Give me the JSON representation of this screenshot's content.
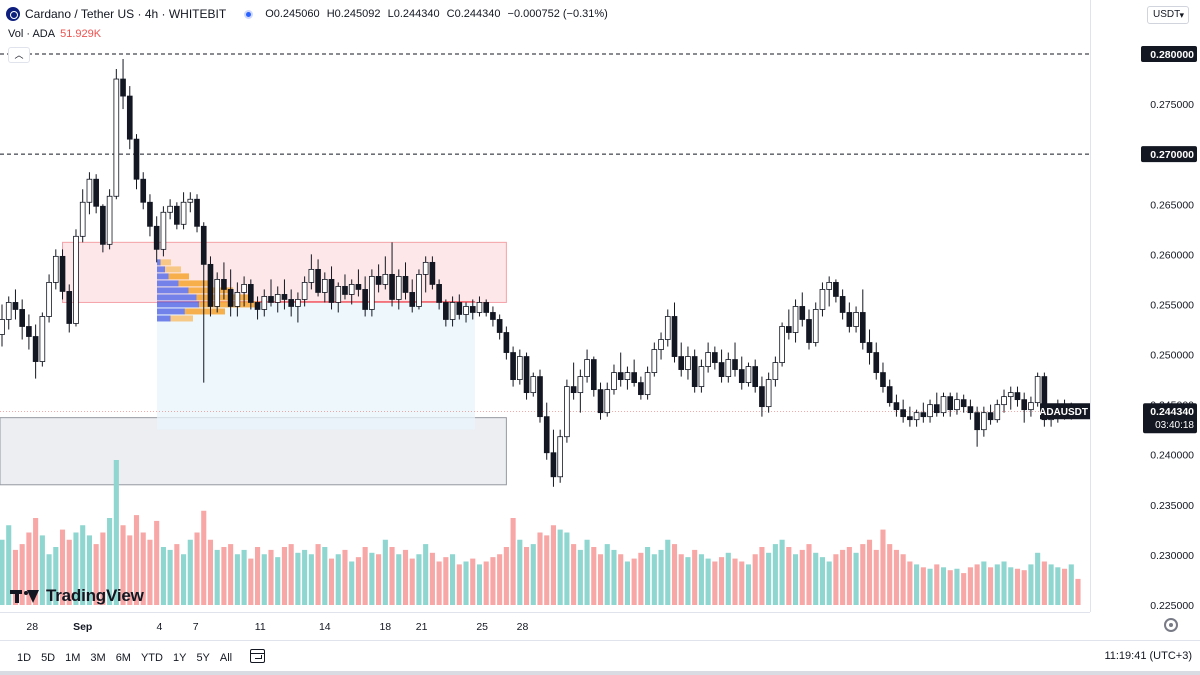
{
  "header": {
    "symbol_title": "Cardano / Tether US · 4h · WHITEBIT",
    "ohlc": {
      "open": "O0.245060",
      "high": "H0.245092",
      "low": "L0.244340",
      "close": "C0.244340",
      "change": "−0.000752 (−0.31%)"
    },
    "volume_label": "Vol · ADA",
    "volume_value": "51.929K",
    "collapse_icon": "chevron-up-icon"
  },
  "price_axis": {
    "currency": "USDT",
    "ticks": [
      "0.280000",
      "0.275000",
      "0.270000",
      "0.265000",
      "0.260000",
      "0.255000",
      "0.250000",
      "0.245000",
      "0.240000",
      "0.235000",
      "0.230000",
      "0.225000"
    ],
    "highlighted_levels": [
      "0.280000",
      "0.270000"
    ],
    "symbol_tag": "ADAUSDT",
    "last_price": "0.244340",
    "countdown": "03:40:18"
  },
  "time_axis": {
    "ticks": [
      "28",
      "Sep",
      "4",
      "7",
      "11",
      "14",
      "18",
      "21",
      "25",
      "28"
    ]
  },
  "bottom_bar": {
    "ranges": [
      "1D",
      "5D",
      "1M",
      "3M",
      "6M",
      "YTD",
      "1Y",
      "5Y",
      "All"
    ],
    "clock": "11:19:41 (UTC+3)"
  },
  "watermark": {
    "text": "TradingView"
  },
  "colors": {
    "up": "#26a69a",
    "down": "#ef5350",
    "vol_up": "#8ed6cf",
    "vol_down": "#f7a7a6",
    "resistance_zone": "#fde7e9",
    "resistance_border": "#f3a2a8",
    "support_zone": "#eceef2",
    "support_border": "#9598a1",
    "level_line": "#131722"
  },
  "chart_data": {
    "type": "candlestick",
    "title": "Cardano / Tether US · 4h · WHITEBIT",
    "ylabel": "USDT",
    "ylim": [
      0.2225,
      0.2812
    ],
    "horizontal_levels": [
      0.28,
      0.27
    ],
    "zones": [
      {
        "kind": "resistance",
        "from_x": 25.5,
        "to_x": 36.5,
        "low": 0.2552,
        "high": 0.2612
      },
      {
        "kind": "support",
        "from_x": 24.7,
        "to_x": 36.5,
        "low": 0.237,
        "high": 0.2437
      }
    ],
    "last_price": 0.24434,
    "x_tick_positions": {
      "28": 24.75,
      "Sep": 26.0,
      "4": 27.9,
      "7": 28.8,
      "11": 30.4,
      "14": 32.0,
      "18": 33.5,
      "21": 34.4,
      "25": 35.9,
      "28_end": 36.9
    },
    "candles": [
      [
        0.252,
        0.255,
        0.2508,
        0.2535
      ],
      [
        0.2535,
        0.2558,
        0.2525,
        0.2552
      ],
      [
        0.2552,
        0.2565,
        0.2535,
        0.2545
      ],
      [
        0.2545,
        0.2555,
        0.2515,
        0.2528
      ],
      [
        0.2528,
        0.254,
        0.2505,
        0.2518
      ],
      [
        0.2518,
        0.253,
        0.2476,
        0.2493
      ],
      [
        0.2493,
        0.2542,
        0.2488,
        0.2538
      ],
      [
        0.2538,
        0.258,
        0.2532,
        0.2572
      ],
      [
        0.2572,
        0.2605,
        0.2565,
        0.2598
      ],
      [
        0.2598,
        0.2605,
        0.2555,
        0.2563
      ],
      [
        0.2563,
        0.257,
        0.2522,
        0.2531
      ],
      [
        0.2531,
        0.2625,
        0.2528,
        0.2618
      ],
      [
        0.2618,
        0.2665,
        0.2612,
        0.2652
      ],
      [
        0.2652,
        0.2682,
        0.264,
        0.2675
      ],
      [
        0.2675,
        0.268,
        0.2641,
        0.2648
      ],
      [
        0.2648,
        0.265,
        0.2602,
        0.261
      ],
      [
        0.261,
        0.2665,
        0.2605,
        0.2658
      ],
      [
        0.2658,
        0.2785,
        0.2655,
        0.2775
      ],
      [
        0.2775,
        0.2795,
        0.2745,
        0.2758
      ],
      [
        0.2758,
        0.2768,
        0.2705,
        0.2715
      ],
      [
        0.2715,
        0.272,
        0.2665,
        0.2675
      ],
      [
        0.2675,
        0.2682,
        0.2645,
        0.2652
      ],
      [
        0.2652,
        0.266,
        0.2618,
        0.2628
      ],
      [
        0.2628,
        0.2638,
        0.2592,
        0.2605
      ],
      [
        0.2605,
        0.2648,
        0.2598,
        0.2642
      ],
      [
        0.2642,
        0.2655,
        0.2635,
        0.2648
      ],
      [
        0.2648,
        0.2652,
        0.2625,
        0.263
      ],
      [
        0.263,
        0.2662,
        0.2625,
        0.2652
      ],
      [
        0.2652,
        0.2662,
        0.2642,
        0.2655
      ],
      [
        0.2655,
        0.266,
        0.2622,
        0.2628
      ],
      [
        0.2628,
        0.2632,
        0.2472,
        0.259
      ],
      [
        0.259,
        0.2598,
        0.2538,
        0.2548
      ],
      [
        0.2548,
        0.2582,
        0.2542,
        0.2575
      ],
      [
        0.2575,
        0.2592,
        0.2555,
        0.2565
      ],
      [
        0.2565,
        0.2585,
        0.2538,
        0.2548
      ],
      [
        0.2548,
        0.2572,
        0.2538,
        0.2562
      ],
      [
        0.2562,
        0.2578,
        0.2548,
        0.257
      ],
      [
        0.257,
        0.2575,
        0.2545,
        0.2552
      ],
      [
        0.2552,
        0.2558,
        0.2535,
        0.2545
      ],
      [
        0.2545,
        0.2565,
        0.2538,
        0.2558
      ],
      [
        0.2558,
        0.2575,
        0.2548,
        0.2552
      ],
      [
        0.2552,
        0.2568,
        0.2542,
        0.256
      ],
      [
        0.256,
        0.2575,
        0.2545,
        0.2555
      ],
      [
        0.2555,
        0.2565,
        0.2538,
        0.2548
      ],
      [
        0.2548,
        0.2562,
        0.2532,
        0.2555
      ],
      [
        0.2555,
        0.2578,
        0.2548,
        0.2572
      ],
      [
        0.2572,
        0.26,
        0.2565,
        0.2585
      ],
      [
        0.2585,
        0.2595,
        0.2558,
        0.2562
      ],
      [
        0.2562,
        0.2582,
        0.2552,
        0.2575
      ],
      [
        0.2575,
        0.2588,
        0.2545,
        0.2552
      ],
      [
        0.2552,
        0.2572,
        0.2542,
        0.2568
      ],
      [
        0.2568,
        0.258,
        0.2555,
        0.256
      ],
      [
        0.256,
        0.2575,
        0.255,
        0.257
      ],
      [
        0.257,
        0.2585,
        0.2558,
        0.2565
      ],
      [
        0.2565,
        0.2578,
        0.2538,
        0.2545
      ],
      [
        0.2545,
        0.2585,
        0.2538,
        0.2578
      ],
      [
        0.2578,
        0.259,
        0.2562,
        0.257
      ],
      [
        0.257,
        0.2598,
        0.2565,
        0.258
      ],
      [
        0.258,
        0.2612,
        0.2548,
        0.2555
      ],
      [
        0.2555,
        0.2585,
        0.2545,
        0.2578
      ],
      [
        0.2578,
        0.2592,
        0.2555,
        0.2562
      ],
      [
        0.2562,
        0.2575,
        0.2542,
        0.2548
      ],
      [
        0.2548,
        0.2585,
        0.2545,
        0.258
      ],
      [
        0.258,
        0.2598,
        0.2562,
        0.2592
      ],
      [
        0.2592,
        0.2598,
        0.2565,
        0.257
      ],
      [
        0.257,
        0.2575,
        0.2545,
        0.2552
      ],
      [
        0.2552,
        0.2555,
        0.2528,
        0.2535
      ],
      [
        0.2535,
        0.2558,
        0.2528,
        0.2552
      ],
      [
        0.2552,
        0.256,
        0.2535,
        0.254
      ],
      [
        0.254,
        0.2552,
        0.2532,
        0.2548
      ],
      [
        0.2548,
        0.2555,
        0.2535,
        0.2542
      ],
      [
        0.2542,
        0.2558,
        0.2538,
        0.2552
      ],
      [
        0.2552,
        0.2555,
        0.2538,
        0.2542
      ],
      [
        0.2542,
        0.2548,
        0.2528,
        0.2535
      ],
      [
        0.2535,
        0.254,
        0.2515,
        0.2522
      ],
      [
        0.2522,
        0.2528,
        0.2495,
        0.2502
      ],
      [
        0.2502,
        0.2508,
        0.2468,
        0.2475
      ],
      [
        0.2475,
        0.2505,
        0.247,
        0.2498
      ],
      [
        0.2498,
        0.2502,
        0.2455,
        0.2462
      ],
      [
        0.2462,
        0.2482,
        0.2458,
        0.2478
      ],
      [
        0.2478,
        0.2485,
        0.2432,
        0.2438
      ],
      [
        0.2438,
        0.2452,
        0.2395,
        0.2402
      ],
      [
        0.2402,
        0.2425,
        0.2368,
        0.2378
      ],
      [
        0.2378,
        0.2425,
        0.2372,
        0.2418
      ],
      [
        0.2418,
        0.2475,
        0.2412,
        0.2468
      ],
      [
        0.2468,
        0.2492,
        0.2455,
        0.2462
      ],
      [
        0.2462,
        0.2485,
        0.2442,
        0.2478
      ],
      [
        0.2478,
        0.2505,
        0.2472,
        0.2495
      ],
      [
        0.2495,
        0.2498,
        0.2458,
        0.2465
      ],
      [
        0.2465,
        0.2472,
        0.2435,
        0.2442
      ],
      [
        0.2442,
        0.2472,
        0.2438,
        0.2465
      ],
      [
        0.2465,
        0.249,
        0.246,
        0.2482
      ],
      [
        0.2482,
        0.2502,
        0.2468,
        0.2475
      ],
      [
        0.2475,
        0.2488,
        0.2465,
        0.2482
      ],
      [
        0.2482,
        0.2495,
        0.2468,
        0.2472
      ],
      [
        0.2472,
        0.2478,
        0.2455,
        0.246
      ],
      [
        0.246,
        0.2488,
        0.2455,
        0.2482
      ],
      [
        0.2482,
        0.2512,
        0.2478,
        0.2505
      ],
      [
        0.2505,
        0.2522,
        0.2495,
        0.2515
      ],
      [
        0.2515,
        0.2545,
        0.2508,
        0.2538
      ],
      [
        0.2538,
        0.2552,
        0.2492,
        0.2498
      ],
      [
        0.2498,
        0.2512,
        0.2478,
        0.2485
      ],
      [
        0.2485,
        0.2508,
        0.2475,
        0.2498
      ],
      [
        0.2498,
        0.2505,
        0.2462,
        0.2468
      ],
      [
        0.2468,
        0.2495,
        0.2462,
        0.2488
      ],
      [
        0.2488,
        0.2512,
        0.2482,
        0.2502
      ],
      [
        0.2502,
        0.2508,
        0.2485,
        0.2492
      ],
      [
        0.2492,
        0.2505,
        0.2472,
        0.2478
      ],
      [
        0.2478,
        0.2502,
        0.2472,
        0.2495
      ],
      [
        0.2495,
        0.2512,
        0.2478,
        0.2485
      ],
      [
        0.2485,
        0.2498,
        0.2465,
        0.2472
      ],
      [
        0.2472,
        0.2492,
        0.2468,
        0.2488
      ],
      [
        0.2488,
        0.2495,
        0.2462,
        0.2468
      ],
      [
        0.2468,
        0.2478,
        0.2438,
        0.2448
      ],
      [
        0.2448,
        0.2482,
        0.2442,
        0.2475
      ],
      [
        0.2475,
        0.2498,
        0.2468,
        0.2492
      ],
      [
        0.2492,
        0.2532,
        0.2488,
        0.2528
      ],
      [
        0.2528,
        0.2545,
        0.2515,
        0.2522
      ],
      [
        0.2522,
        0.2555,
        0.2512,
        0.2548
      ],
      [
        0.2548,
        0.2562,
        0.2528,
        0.2535
      ],
      [
        0.2535,
        0.2545,
        0.2505,
        0.2512
      ],
      [
        0.2512,
        0.2552,
        0.2508,
        0.2545
      ],
      [
        0.2545,
        0.2572,
        0.2538,
        0.2565
      ],
      [
        0.2565,
        0.2578,
        0.2548,
        0.2572
      ],
      [
        0.2572,
        0.2575,
        0.2552,
        0.2558
      ],
      [
        0.2558,
        0.2565,
        0.2535,
        0.2542
      ],
      [
        0.2542,
        0.2552,
        0.2522,
        0.2528
      ],
      [
        0.2528,
        0.2548,
        0.2522,
        0.2542
      ],
      [
        0.2542,
        0.2565,
        0.2505,
        0.2512
      ],
      [
        0.2512,
        0.2525,
        0.249,
        0.2502
      ],
      [
        0.2502,
        0.2512,
        0.2475,
        0.2482
      ],
      [
        0.2482,
        0.2492,
        0.2462,
        0.2468
      ],
      [
        0.2468,
        0.2475,
        0.2448,
        0.2452
      ],
      [
        0.2452,
        0.246,
        0.2438,
        0.2445
      ],
      [
        0.2445,
        0.2455,
        0.2432,
        0.2438
      ],
      [
        0.2438,
        0.2448,
        0.2428,
        0.2435
      ],
      [
        0.2435,
        0.2445,
        0.2428,
        0.2442
      ],
      [
        0.2442,
        0.2452,
        0.2432,
        0.2438
      ],
      [
        0.2438,
        0.2455,
        0.2432,
        0.245
      ],
      [
        0.245,
        0.2462,
        0.2438,
        0.2442
      ],
      [
        0.2442,
        0.2462,
        0.2438,
        0.2458
      ],
      [
        0.2458,
        0.2462,
        0.2438,
        0.2445
      ],
      [
        0.2445,
        0.2462,
        0.244,
        0.2455
      ],
      [
        0.2455,
        0.246,
        0.2442,
        0.2448
      ],
      [
        0.2448,
        0.2455,
        0.2435,
        0.2442
      ],
      [
        0.2442,
        0.2448,
        0.2408,
        0.2425
      ],
      [
        0.2425,
        0.2448,
        0.2418,
        0.2442
      ],
      [
        0.2442,
        0.245,
        0.243,
        0.2435
      ],
      [
        0.2435,
        0.2455,
        0.2432,
        0.245
      ],
      [
        0.245,
        0.2465,
        0.2442,
        0.2458
      ],
      [
        0.2458,
        0.2468,
        0.2445,
        0.2462
      ],
      [
        0.2462,
        0.2468,
        0.2448,
        0.2455
      ],
      [
        0.2455,
        0.2462,
        0.2432,
        0.2445
      ],
      [
        0.2445,
        0.2458,
        0.2438,
        0.2452
      ],
      [
        0.2452,
        0.2482,
        0.2448,
        0.2478
      ],
      [
        0.2478,
        0.2482,
        0.2428,
        0.2435
      ],
      [
        0.2435,
        0.2448,
        0.2428,
        0.2442
      ],
      [
        0.2442,
        0.2455,
        0.2432,
        0.2448
      ],
      [
        0.2448,
        0.2455,
        0.2435,
        0.244
      ],
      [
        0.244,
        0.2452,
        0.2435,
        0.245
      ],
      [
        0.2450606,
        0.245092,
        0.24434,
        0.24434
      ]
    ],
    "volumes": [
      0.45,
      0.55,
      0.38,
      0.42,
      0.5,
      0.6,
      0.48,
      0.35,
      0.4,
      0.52,
      0.45,
      0.5,
      0.55,
      0.48,
      0.42,
      0.5,
      0.6,
      1.0,
      0.55,
      0.48,
      0.62,
      0.5,
      0.45,
      0.58,
      0.4,
      0.38,
      0.42,
      0.35,
      0.45,
      0.5,
      0.65,
      0.45,
      0.38,
      0.4,
      0.42,
      0.35,
      0.38,
      0.32,
      0.4,
      0.35,
      0.38,
      0.33,
      0.4,
      0.42,
      0.36,
      0.38,
      0.35,
      0.42,
      0.4,
      0.32,
      0.35,
      0.38,
      0.3,
      0.33,
      0.4,
      0.36,
      0.35,
      0.45,
      0.4,
      0.35,
      0.38,
      0.32,
      0.35,
      0.42,
      0.36,
      0.3,
      0.33,
      0.35,
      0.28,
      0.3,
      0.32,
      0.28,
      0.3,
      0.33,
      0.35,
      0.4,
      0.6,
      0.45,
      0.4,
      0.42,
      0.5,
      0.48,
      0.55,
      0.52,
      0.5,
      0.42,
      0.38,
      0.45,
      0.4,
      0.35,
      0.42,
      0.38,
      0.35,
      0.3,
      0.32,
      0.36,
      0.4,
      0.35,
      0.38,
      0.45,
      0.42,
      0.35,
      0.33,
      0.38,
      0.35,
      0.32,
      0.3,
      0.33,
      0.36,
      0.32,
      0.3,
      0.28,
      0.35,
      0.4,
      0.36,
      0.42,
      0.45,
      0.4,
      0.35,
      0.38,
      0.42,
      0.36,
      0.33,
      0.3,
      0.35,
      0.38,
      0.4,
      0.36,
      0.42,
      0.45,
      0.38,
      0.52,
      0.42,
      0.38,
      0.35,
      0.3,
      0.28,
      0.26,
      0.25,
      0.28,
      0.26,
      0.24,
      0.25,
      0.22,
      0.26,
      0.28,
      0.3,
      0.26,
      0.28,
      0.3,
      0.26,
      0.25,
      0.24,
      0.28,
      0.36,
      0.3,
      0.28,
      0.26,
      0.25,
      0.28,
      0.18
    ]
  }
}
